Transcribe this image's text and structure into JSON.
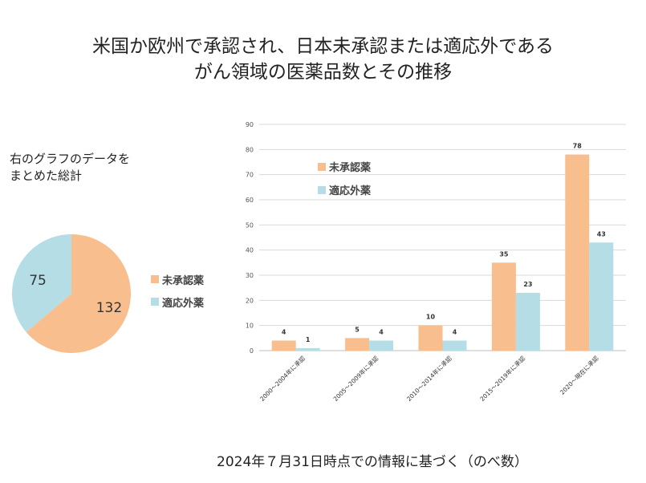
{
  "title": {
    "line1": "米国か欧州で承認され、日本未承認または適応外である",
    "line2": "がん領域の医薬品数とその推移"
  },
  "summary_note": {
    "line1": "右のグラフのデータを",
    "line2": "まとめた総計"
  },
  "footer": "2024年７月31日時点での情報に基づく（のべ数）",
  "colors": {
    "unapproved": "#f9be8e",
    "off_label": "#b4dde6",
    "grid": "#d9d9d9",
    "axis": "#bfbfbf"
  },
  "chart_data": [
    {
      "type": "pie",
      "labels": [
        "未承認薬",
        "適応外薬"
      ],
      "values": [
        132,
        75
      ],
      "legend": "right"
    },
    {
      "type": "bar",
      "categories": [
        "2000～2004年に承認",
        "2005～2009年に承認",
        "2010～2014年に承認",
        "2015～2019年に承認",
        "2020～現在に承認"
      ],
      "series": [
        {
          "name": "未承認薬",
          "values": [
            4,
            5,
            10,
            35,
            78
          ]
        },
        {
          "name": "適応外薬",
          "values": [
            1,
            4,
            4,
            23,
            43
          ]
        }
      ],
      "ylim": [
        0,
        90
      ],
      "yticks": [
        0,
        10,
        20,
        30,
        40,
        50,
        60,
        70,
        80,
        90
      ],
      "grid": true,
      "legend": "top-left"
    }
  ]
}
